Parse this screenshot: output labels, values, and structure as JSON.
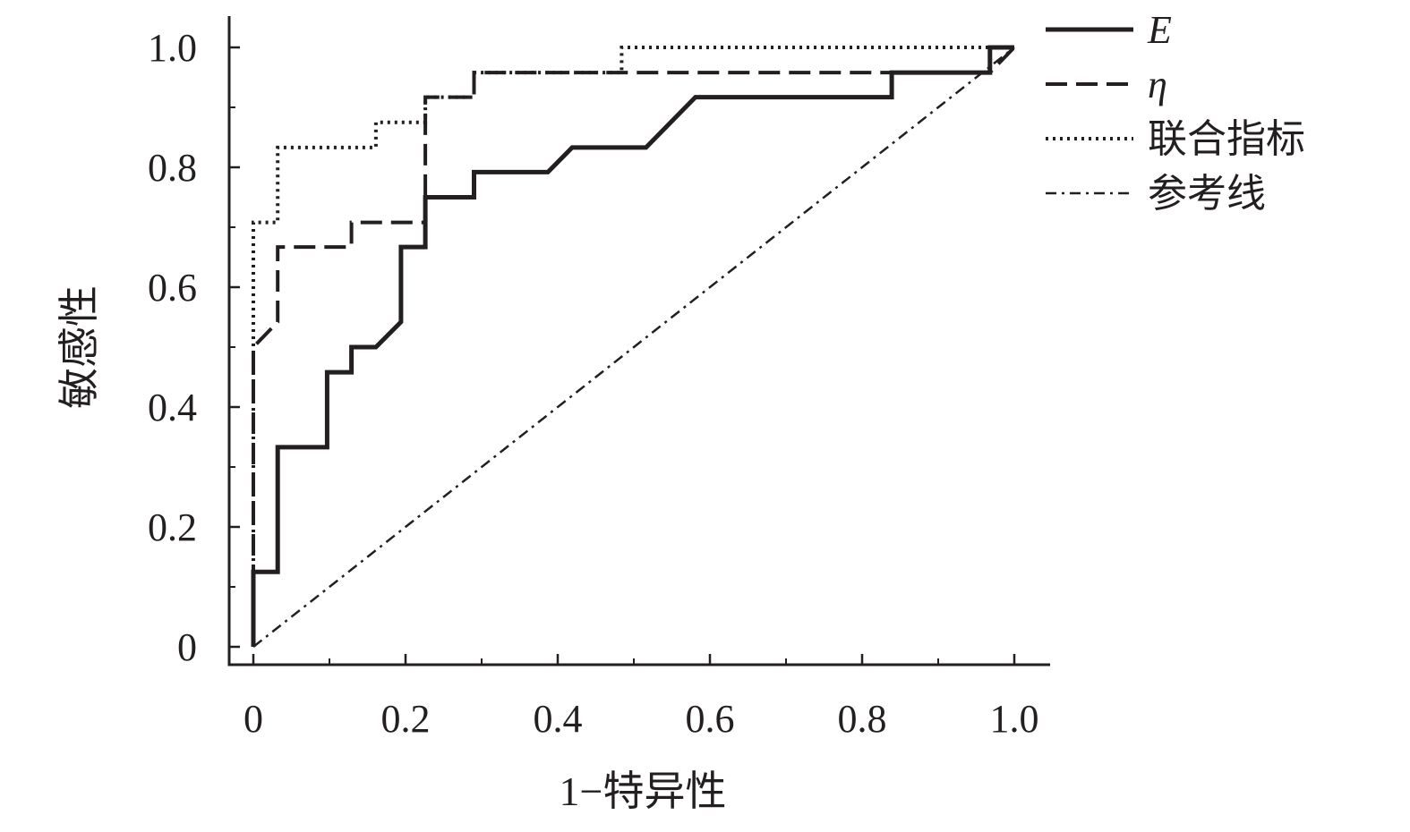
{
  "chart_data": {
    "type": "line",
    "title": "",
    "xlabel": "1−特异性",
    "ylabel": "敏感性",
    "xlim": [
      0,
      1.05
    ],
    "ylim": [
      -0.03,
      1.05
    ],
    "xticks": [
      0,
      0.2,
      0.4,
      0.6,
      0.8,
      1.0
    ],
    "xtick_labels": [
      "0",
      "0.2",
      "0.4",
      "0.6",
      "0.8",
      "1.0"
    ],
    "yticks": [
      0,
      0.2,
      0.4,
      0.6,
      0.8,
      1.0
    ],
    "ytick_labels": [
      "0",
      "0.2",
      "0.4",
      "0.6",
      "0.8",
      "1.0"
    ],
    "grid": false,
    "legend_position": "top-right",
    "series": [
      {
        "name": "E",
        "style": "solid",
        "points": [
          [
            0,
            0
          ],
          [
            0,
            0.125
          ],
          [
            0.032,
            0.125
          ],
          [
            0.032,
            0.333
          ],
          [
            0.097,
            0.333
          ],
          [
            0.097,
            0.458
          ],
          [
            0.129,
            0.458
          ],
          [
            0.129,
            0.5
          ],
          [
            0.161,
            0.5
          ],
          [
            0.194,
            0.542
          ],
          [
            0.194,
            0.667
          ],
          [
            0.226,
            0.667
          ],
          [
            0.226,
            0.75
          ],
          [
            0.29,
            0.75
          ],
          [
            0.29,
            0.792
          ],
          [
            0.387,
            0.792
          ],
          [
            0.419,
            0.833
          ],
          [
            0.516,
            0.833
          ],
          [
            0.581,
            0.917
          ],
          [
            0.839,
            0.917
          ],
          [
            0.839,
            0.958
          ],
          [
            0.968,
            0.958
          ],
          [
            0.968,
            1.0
          ],
          [
            1.0,
            1.0
          ]
        ]
      },
      {
        "name": "η",
        "style": "dashed",
        "points": [
          [
            0,
            0.0
          ],
          [
            0,
            0.5
          ],
          [
            0.032,
            0.542
          ],
          [
            0.032,
            0.667
          ],
          [
            0.129,
            0.667
          ],
          [
            0.129,
            0.708
          ],
          [
            0.226,
            0.708
          ],
          [
            0.226,
            0.917
          ],
          [
            0.29,
            0.917
          ],
          [
            0.29,
            0.958
          ],
          [
            0.968,
            0.958
          ],
          [
            1.0,
            1.0
          ]
        ]
      },
      {
        "name": "联合指标",
        "style": "dotted",
        "points": [
          [
            0,
            0.0
          ],
          [
            0,
            0.708
          ],
          [
            0.032,
            0.708
          ],
          [
            0.032,
            0.833
          ],
          [
            0.161,
            0.833
          ],
          [
            0.161,
            0.875
          ],
          [
            0.226,
            0.875
          ],
          [
            0.226,
            0.917
          ],
          [
            0.29,
            0.917
          ],
          [
            0.29,
            0.958
          ],
          [
            0.484,
            0.958
          ],
          [
            0.484,
            1.0
          ],
          [
            1.0,
            1.0
          ]
        ]
      },
      {
        "name": "参考线",
        "style": "dash-dot",
        "points": [
          [
            0,
            0
          ],
          [
            1.0,
            1.0
          ]
        ]
      }
    ]
  },
  "legend": {
    "items": [
      {
        "label": "E",
        "style": "solid"
      },
      {
        "label": "η",
        "style": "dashed"
      },
      {
        "label": "联合指标",
        "style": "dotted"
      },
      {
        "label": "参考线",
        "style": "dash-dot"
      }
    ]
  },
  "colors": {
    "ink": "#231f20",
    "background": "#ffffff"
  }
}
